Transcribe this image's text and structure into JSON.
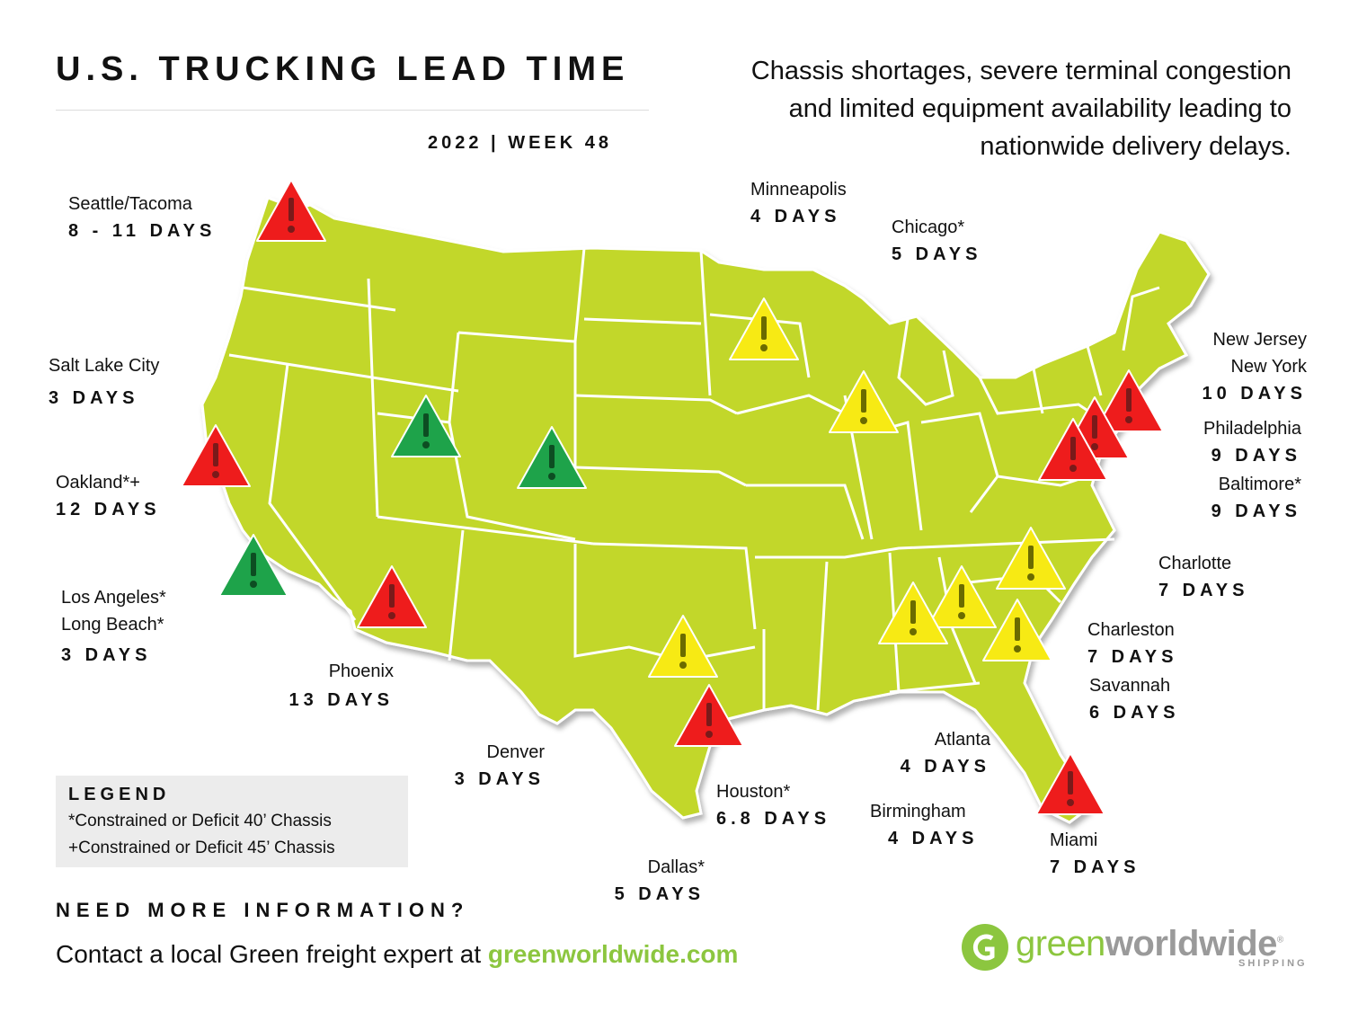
{
  "header": {
    "title": "U.S. TRUCKING LEAD TIME",
    "week": "2022 | WEEK 48",
    "tagline_lines": [
      "Chassis shortages, severe terminal congestion",
      "and limited equipment availability leading to",
      "nationwide delivery delays."
    ]
  },
  "colors": {
    "map_fill": "#c2d72c",
    "map_border": "#ffffff",
    "alert_red": "#ee1c1c",
    "alert_yellow": "#f7ea14",
    "alert_green": "#1ea34a",
    "brand_green": "#8cc63f"
  },
  "locations": [
    {
      "city_lines": [
        "Seattle/Tacoma"
      ],
      "days": "8 - 11 DAYS",
      "status": "red"
    },
    {
      "city_lines": [
        "Salt Lake City"
      ],
      "days": "3 DAYS",
      "status": "green"
    },
    {
      "city_lines": [
        "Oakland*+"
      ],
      "days": "12 DAYS",
      "status": "red"
    },
    {
      "city_lines": [
        "Los Angeles*",
        "Long Beach*"
      ],
      "days": "3 DAYS",
      "status": "green"
    },
    {
      "city_lines": [
        "Phoenix"
      ],
      "days": "13 DAYS",
      "status": "red"
    },
    {
      "city_lines": [
        "Denver"
      ],
      "days": "3 DAYS",
      "status": "green"
    },
    {
      "city_lines": [
        "Dallas*"
      ],
      "days": "5 DAYS",
      "status": "yellow"
    },
    {
      "city_lines": [
        "Houston*"
      ],
      "days": "6.8 DAYS",
      "status": "red"
    },
    {
      "city_lines": [
        "Minneapolis"
      ],
      "days": "4 DAYS",
      "status": "yellow"
    },
    {
      "city_lines": [
        "Chicago*"
      ],
      "days": "5 DAYS",
      "status": "yellow"
    },
    {
      "city_lines": [
        "New Jersey",
        "New York"
      ],
      "days": "10 DAYS",
      "status": "red"
    },
    {
      "city_lines": [
        "Philadelphia"
      ],
      "days": "9 DAYS",
      "status": "red"
    },
    {
      "city_lines": [
        "Baltimore*"
      ],
      "days": "9 DAYS",
      "status": "red"
    },
    {
      "city_lines": [
        "Charlotte"
      ],
      "days": "7 DAYS",
      "status": "yellow"
    },
    {
      "city_lines": [
        "Charleston"
      ],
      "days": "7 DAYS",
      "status": "yellow"
    },
    {
      "city_lines": [
        "Savannah"
      ],
      "days": "6 DAYS",
      "status": "yellow"
    },
    {
      "city_lines": [
        "Atlanta"
      ],
      "days": "4 DAYS",
      "status": "yellow"
    },
    {
      "city_lines": [
        "Birmingham"
      ],
      "days": "4 DAYS",
      "status": "yellow"
    },
    {
      "city_lines": [
        "Miami"
      ],
      "days": "7 DAYS",
      "status": "red"
    }
  ],
  "legend": {
    "title": "LEGEND",
    "line1": "*Constrained or Deficit 40’ Chassis",
    "line2": "+Constrained or Deficit 45’ Chassis"
  },
  "footer": {
    "heading": "NEED MORE INFORMATION?",
    "contact_prefix": "Contact a local Green freight expert at ",
    "contact_link": "greenworldwide.com"
  },
  "logo": {
    "name_part1": "green",
    "name_part2": "worldwide",
    "registered": "®",
    "sub": "SHIPPING"
  }
}
